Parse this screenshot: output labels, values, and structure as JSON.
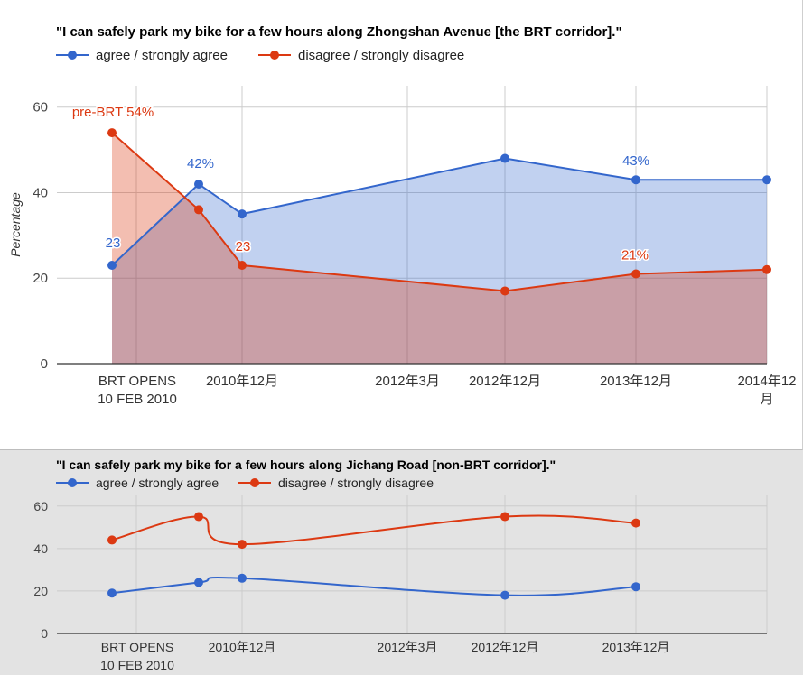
{
  "chart_data": [
    {
      "type": "area",
      "title": "\"I can safely park my bike for a few hours along Zhongshan Avenue [the BRT corridor].\"",
      "ylabel": "Percentage",
      "ylim": [
        0,
        65
      ],
      "yticks": [
        0,
        20,
        40,
        60
      ],
      "grid": true,
      "legend_position": "top",
      "x_ticks": [
        "BRT OPENS\n10 FEB 2010",
        "2010年12月",
        "2012年3月",
        "2012年12月",
        "2013年12月",
        "2014年12\n月"
      ],
      "series": [
        {
          "name": "agree / strongly agree",
          "color": "#3366cc",
          "points": [
            [
              "2010-01",
              23
            ],
            [
              "2010-06",
              42
            ],
            [
              "2010-10",
              35
            ],
            [
              "2012-12",
              48
            ],
            [
              "2013-12",
              43
            ],
            [
              "2014-12",
              43
            ]
          ]
        },
        {
          "name": "disagree / strongly disagree",
          "color": "#dc3912",
          "points": [
            [
              "2010-01",
              54
            ],
            [
              "2010-06",
              36
            ],
            [
              "2010-10",
              23
            ],
            [
              "2012-12",
              17
            ],
            [
              "2013-12",
              21
            ],
            [
              "2014-12",
              22
            ]
          ]
        }
      ],
      "annotations": [
        {
          "text": "pre-BRT 54%",
          "series": 1,
          "point": 0,
          "color": "#dc3912"
        },
        {
          "text": "23",
          "series": 0,
          "point": 0,
          "color": "#3366cc"
        },
        {
          "text": "42%",
          "series": 0,
          "point": 1,
          "color": "#3366cc"
        },
        {
          "text": "23",
          "series": 1,
          "point": 2,
          "color": "#dc3912"
        },
        {
          "text": "43%",
          "series": 0,
          "point": 4,
          "color": "#3366cc"
        },
        {
          "text": "21%",
          "series": 1,
          "point": 4,
          "color": "#dc3912"
        }
      ]
    },
    {
      "type": "line",
      "title": "\"I can safely park my bike for a few hours along Jichang Road [non-BRT corridor].\"",
      "ylim": [
        0,
        65
      ],
      "yticks": [
        0,
        20,
        40,
        60
      ],
      "grid": true,
      "legend_position": "top",
      "x_ticks": [
        "BRT OPENS\n10 FEB 2010",
        "2010年12月",
        "2012年3月",
        "2012年12月",
        "2013年12月"
      ],
      "series": [
        {
          "name": "agree / strongly agree",
          "color": "#3366cc",
          "points": [
            [
              "2010-01",
              19
            ],
            [
              "2010-06",
              24
            ],
            [
              "2010-10",
              26
            ],
            [
              "2012-12",
              18
            ],
            [
              "2013-12",
              22
            ]
          ]
        },
        {
          "name": "disagree / strongly disagree",
          "color": "#dc3912",
          "points": [
            [
              "2010-01",
              44
            ],
            [
              "2010-06",
              55
            ],
            [
              "2010-10",
              42
            ],
            [
              "2012-12",
              55
            ],
            [
              "2013-12",
              52
            ]
          ]
        }
      ]
    }
  ]
}
